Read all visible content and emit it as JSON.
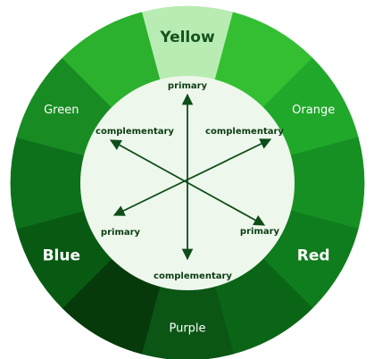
{
  "wheel": {
    "segments": [
      {
        "name": "Yellow",
        "color": "#b9ecb3"
      },
      {
        "name": "",
        "color": "#34bf33"
      },
      {
        "name": "Orange",
        "color": "#20a82a"
      },
      {
        "name": "",
        "color": "#169023"
      },
      {
        "name": "Red",
        "color": "#0f7c1d"
      },
      {
        "name": "",
        "color": "#0b6517"
      },
      {
        "name": "Purple",
        "color": "#0b5615"
      },
      {
        "name": "",
        "color": "#063a0b"
      },
      {
        "name": "Blue",
        "color": "#085a13"
      },
      {
        "name": "",
        "color": "#0d711b"
      },
      {
        "name": "Green",
        "color": "#188c23"
      },
      {
        "name": "",
        "color": "#2bb12d"
      }
    ],
    "inner_labels": {
      "top": "primary",
      "bottom_left": "primary",
      "bottom_right": "primary",
      "top_left": "complementary",
      "top_right": "complementary",
      "bottom": "complementary"
    },
    "colors": {
      "center": "#eef7ec",
      "arrow": "#0d4d18"
    }
  }
}
